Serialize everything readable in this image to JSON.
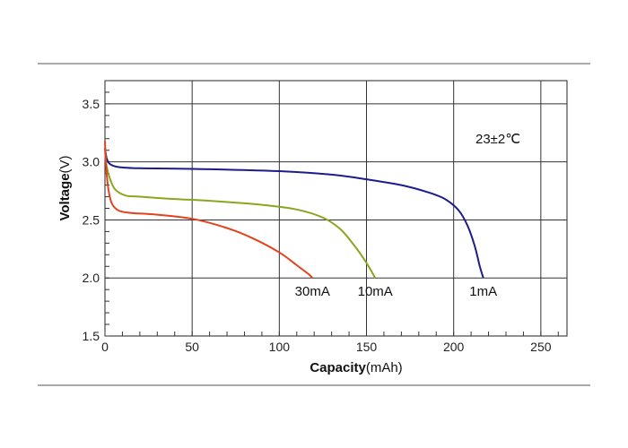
{
  "chart_data": {
    "type": "line",
    "xlabel_bold": "Capacity",
    "xlabel_unit": "(mAh)",
    "ylabel_bold": "Voltage",
    "ylabel_unit": "(V)",
    "xlim": [
      0,
      265
    ],
    "ylim": [
      1.5,
      3.7
    ],
    "x_ticks": [
      0,
      50,
      100,
      150,
      200,
      250
    ],
    "x_tick_labels": [
      "0",
      "50",
      "100",
      "150",
      "200",
      "250"
    ],
    "y_ticks": [
      1.5,
      2.0,
      2.5,
      3.0,
      3.5
    ],
    "y_tick_labels": [
      "1.5",
      "2.0",
      "2.5",
      "3.0",
      "3.5"
    ],
    "grid": true,
    "annotation": "23±2℃",
    "series": [
      {
        "name": "1mA",
        "color": "#1c1c8c",
        "points": [
          [
            0,
            3.12
          ],
          [
            1,
            3.03
          ],
          [
            3,
            2.98
          ],
          [
            8,
            2.955
          ],
          [
            20,
            2.945
          ],
          [
            50,
            2.94
          ],
          [
            100,
            2.92
          ],
          [
            130,
            2.89
          ],
          [
            150,
            2.85
          ],
          [
            170,
            2.8
          ],
          [
            185,
            2.74
          ],
          [
            195,
            2.68
          ],
          [
            203,
            2.58
          ],
          [
            208,
            2.45
          ],
          [
            212,
            2.28
          ],
          [
            215,
            2.1
          ],
          [
            217,
            2.0
          ]
        ]
      },
      {
        "name": "10mA",
        "color": "#8aa61e",
        "points": [
          [
            0,
            3.1
          ],
          [
            1,
            2.96
          ],
          [
            3,
            2.85
          ],
          [
            6,
            2.76
          ],
          [
            12,
            2.71
          ],
          [
            20,
            2.7
          ],
          [
            40,
            2.68
          ],
          [
            60,
            2.665
          ],
          [
            90,
            2.63
          ],
          [
            110,
            2.59
          ],
          [
            125,
            2.52
          ],
          [
            135,
            2.42
          ],
          [
            143,
            2.28
          ],
          [
            150,
            2.13
          ],
          [
            155,
            2.0
          ]
        ]
      },
      {
        "name": "30mA",
        "color": "#e2431c",
        "points": [
          [
            0,
            3.18
          ],
          [
            0.7,
            2.95
          ],
          [
            2,
            2.76
          ],
          [
            4,
            2.64
          ],
          [
            8,
            2.58
          ],
          [
            15,
            2.56
          ],
          [
            30,
            2.545
          ],
          [
            50,
            2.51
          ],
          [
            70,
            2.43
          ],
          [
            85,
            2.34
          ],
          [
            100,
            2.22
          ],
          [
            110,
            2.11
          ],
          [
            117,
            2.03
          ],
          [
            119,
            2.0
          ]
        ]
      }
    ]
  }
}
